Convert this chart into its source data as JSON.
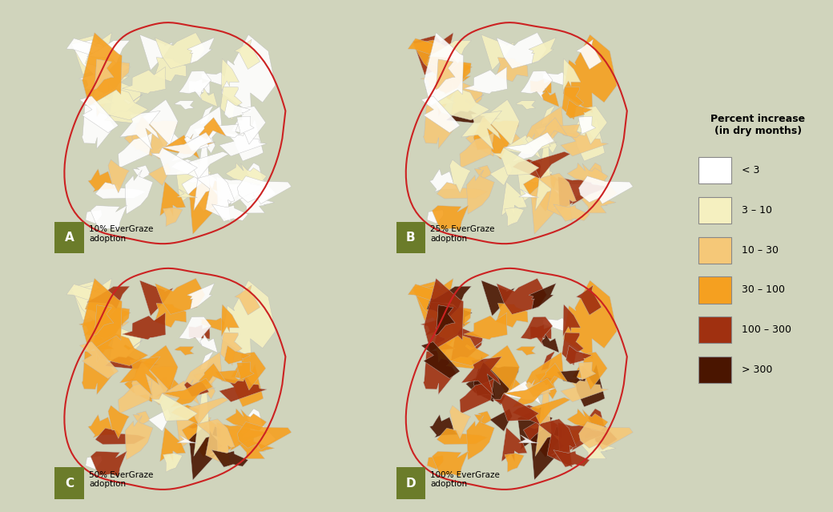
{
  "background_color": "#e8ecd8",
  "panel_bg": "#e8ecd8",
  "figure_bg": "#d8dcc8",
  "title": "",
  "legend_title": "Percent increase\n(in dry months)",
  "legend_labels": [
    "< 3",
    "3 – 10",
    "10 – 30",
    "30 – 100",
    "100 – 300",
    "> 300"
  ],
  "legend_colors": [
    "#ffffff",
    "#f5f0c0",
    "#f5c878",
    "#f5a020",
    "#a03010",
    "#4a1500"
  ],
  "panel_labels": [
    "A",
    "B",
    "C",
    "D"
  ],
  "panel_texts": [
    "10% EverGraze\nadoption",
    "25% EverGraze\nadoption",
    "50% EverGraze\nadoption",
    "100% EverGraze\nadoption"
  ],
  "label_box_color": "#6b7c2a",
  "outline_color": "#cc2222",
  "boundary_color": "#cccccc"
}
